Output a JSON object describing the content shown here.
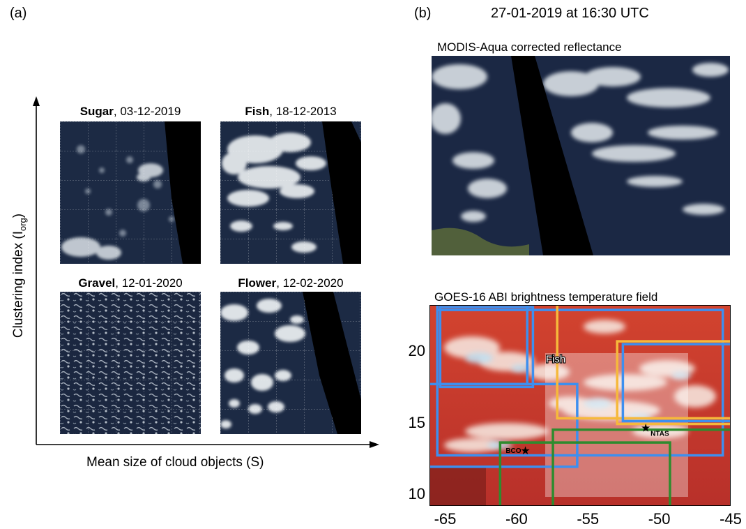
{
  "panel_a": {
    "label": "(a)",
    "y_axis_label": "Clustering index (I",
    "y_axis_sub": "org",
    "y_axis_close": ")",
    "x_axis_label": "Mean size of cloud objects (S)",
    "tiles": [
      {
        "name": "Sugar",
        "date": ", 03-12-2019"
      },
      {
        "name": "Fish",
        "date": ", 18-12-2013"
      },
      {
        "name": "Gravel",
        "date": ", 12-01-2020"
      },
      {
        "name": "Flower",
        "date": ", 12-02-2020"
      }
    ]
  },
  "panel_b": {
    "label": "(b)",
    "datetime": "27-01-2019 at 16:30 UTC",
    "modis_title": "MODIS-Aqua corrected reflectance",
    "goes_title": "GOES-16 ABI brightness temperature field",
    "annotation": "Fish",
    "stations": [
      {
        "name": "BCO",
        "lon": -59.43,
        "lat": 13.16
      },
      {
        "name": "NTAS",
        "lon": -51.0,
        "lat": 14.75
      }
    ],
    "x_ticks": [
      "-65",
      "-60",
      "-55",
      "-50",
      "-45"
    ],
    "y_ticks": [
      "10",
      "15",
      "20"
    ]
  },
  "colors": {
    "blue_box": "#3d8fef",
    "orange_box": "#f6b93b",
    "green_box": "#2e8b2e"
  }
}
